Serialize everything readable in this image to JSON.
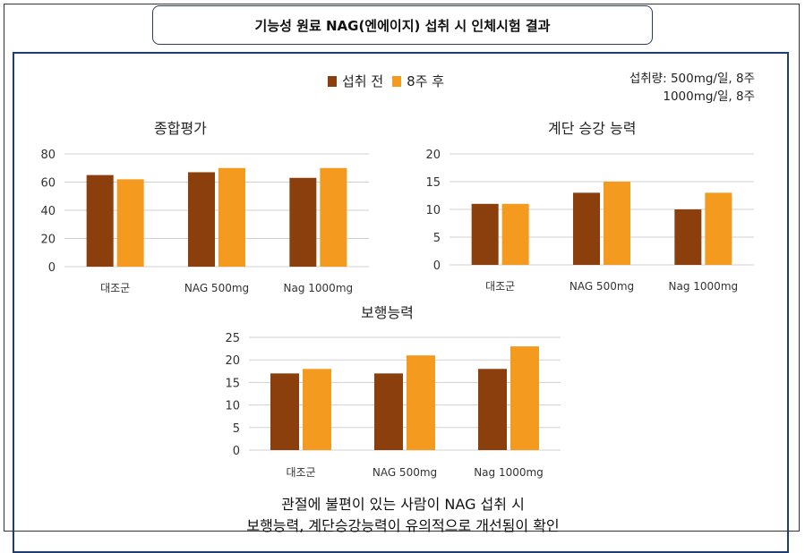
{
  "header": {
    "title": "기능성 원료 NAG(엔에이지) 섭취 시 인체시험 결과"
  },
  "legend": {
    "items": [
      {
        "label": "섭취 전",
        "color": "#8b3f0c"
      },
      {
        "label": "8주 후",
        "color": "#f39a1f"
      }
    ]
  },
  "dose": {
    "line1": "섭취량: 500mg/일, 8주",
    "line2": "1000mg/일, 8주"
  },
  "conclusion": {
    "line1": "관절에 불편이 있는 사람이 NAG 섭취 시",
    "line2": "보행능력, 계단승강능력이 유의적으로 개선됨이 확인"
  },
  "chart_data": [
    {
      "type": "bar",
      "title": "종합평가",
      "categories": [
        "대조군",
        "NAG 500mg",
        "Nag 1000mg"
      ],
      "series": [
        {
          "name": "섭취 전",
          "values": [
            65,
            67,
            63
          ]
        },
        {
          "name": "8주 후",
          "values": [
            62,
            70,
            70
          ]
        }
      ],
      "ylim": [
        0,
        80
      ],
      "yticks": [
        "0",
        "20",
        "40",
        "60",
        "80"
      ],
      "grid": true
    },
    {
      "type": "bar",
      "title": "계단 승강 능력",
      "categories": [
        "대조군",
        "NAG 500mg",
        "Nag 1000mg"
      ],
      "series": [
        {
          "name": "섭취 전",
          "values": [
            11,
            13,
            10
          ]
        },
        {
          "name": "8주 후",
          "values": [
            11,
            15,
            13
          ]
        }
      ],
      "ylim": [
        0,
        20
      ],
      "yticks": [
        "0",
        "5",
        "10",
        "15",
        "20"
      ],
      "grid": true
    },
    {
      "type": "bar",
      "title": "보행능력",
      "categories": [
        "대조군",
        "NAG 500mg",
        "Nag 1000mg"
      ],
      "series": [
        {
          "name": "섭취 전",
          "values": [
            17,
            17,
            18
          ]
        },
        {
          "name": "8주 후",
          "values": [
            18,
            21,
            23
          ]
        }
      ],
      "ylim": [
        0,
        25
      ],
      "yticks": [
        "0",
        "5",
        "10",
        "15",
        "20",
        "25"
      ],
      "grid": true
    }
  ]
}
